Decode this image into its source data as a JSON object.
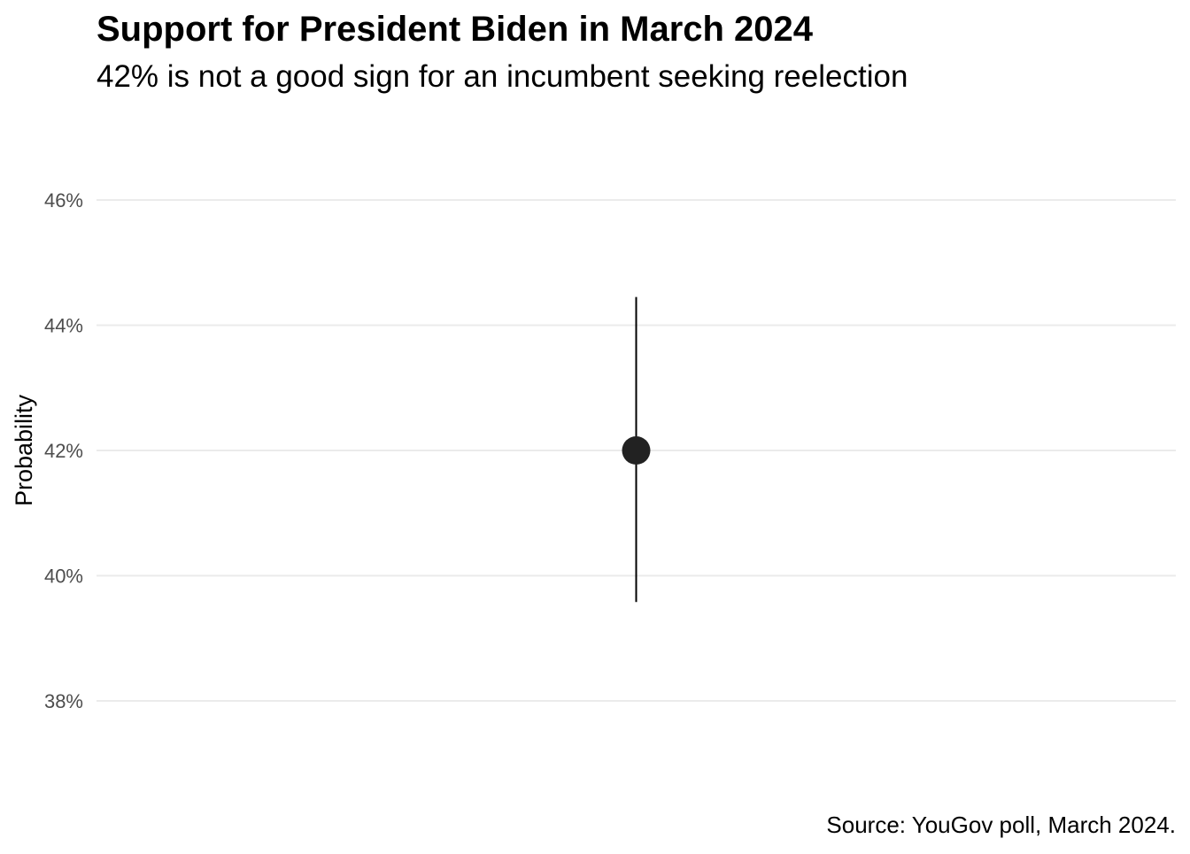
{
  "chart_data": {
    "type": "scatter",
    "title": "Support for President Biden in March 2024",
    "subtitle": "42% is not a good sign for an incumbent seeking reelection",
    "caption": "Source: YouGov poll, March 2024.",
    "xlabel": "",
    "ylabel": "Probability",
    "ylim": [
      0.369,
      0.472
    ],
    "y_ticks": [
      0.38,
      0.4,
      0.42,
      0.44,
      0.46
    ],
    "y_tick_labels": [
      "38%",
      "40%",
      "42%",
      "44%",
      "46%"
    ],
    "grid": true,
    "legend": "none",
    "point": {
      "y": 0.42,
      "lower": 0.3958,
      "upper": 0.4445
    },
    "colors": {
      "point": "#222222",
      "errorbar": "#000000",
      "grid": "#ebebeb",
      "tick_text": "#4d4d4d",
      "text": "#000000"
    }
  }
}
